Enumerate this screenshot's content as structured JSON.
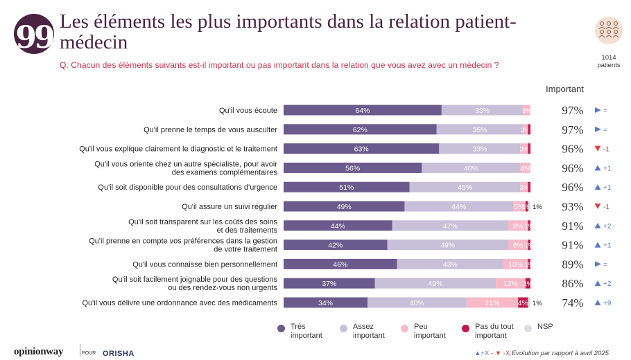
{
  "header": {
    "quote_glyph": "99",
    "title": "Les éléments les plus importants dans la relation patient-médecin",
    "question": "Q. Chacun des éléments suivants est-il important ou pas important dans la relation que vous avez avec un médecin ?",
    "patients_count": "1014",
    "patients_label": "patients",
    "important_header": "Important"
  },
  "chart_data": {
    "type": "bar",
    "orientation": "horizontal-stacked-100",
    "categories": [
      "Qu'il vous écoute",
      "Qu'il prenne le temps de vous ausculter",
      "Qu'il vous explique clairement le diagnostic et le traitement",
      "Qu'il vous oriente chez un autre spécialiste, pour avoir des examens complémentaires",
      "Qu'il soit disponible pour des consultations d'urgence",
      "Qu'il assure un suivi régulier",
      "Qu'il soit transparent sur les coûts des soins et des traitements",
      "Qu'il prenne en compte vos préférences dans la gestion de votre traitement",
      "Qu'il vous connaisse bien personnellement",
      "Qu'il soit facilement joignable pour des questions ou des rendez-vous non urgents",
      "Qu'il vous délivre une ordonnance avec des médicaments"
    ],
    "category_lines": [
      [
        "Qu'il vous écoute"
      ],
      [
        "Qu'il prenne le temps de vous ausculter"
      ],
      [
        "Qu'il vous explique clairement le diagnostic et le traitement"
      ],
      [
        "Qu'il vous oriente chez un autre spécialiste, pour avoir",
        "des examens complémentaires"
      ],
      [
        "Qu'il soit disponible pour des consultations d'urgence"
      ],
      [
        "Qu'il assure un suivi régulier"
      ],
      [
        "Qu'il soit transparent sur les coûts des soins",
        "et des traitements"
      ],
      [
        "Qu'il prenne en compte vos préférences dans la gestion",
        "de votre traitement"
      ],
      [
        "Qu'il vous connaisse bien personnellement"
      ],
      [
        "Qu'il soit facilement joignable pour des questions",
        "ou des rendez-vous non urgents"
      ],
      [
        "Qu'il vous délivre une ordonnance avec des médicaments"
      ]
    ],
    "series": [
      {
        "name": "Très important",
        "color": "#6b5a8c",
        "label_color": "#ffffff",
        "values": [
          64,
          62,
          63,
          56,
          51,
          49,
          44,
          42,
          46,
          37,
          34
        ],
        "labels": [
          "64%",
          "62%",
          "63%",
          "56%",
          "51%",
          "49%",
          "44%",
          "42%",
          "46%",
          "37%",
          "34%"
        ]
      },
      {
        "name": "Assez important",
        "color": "#c8bfd9",
        "label_color": "#ffffff",
        "values": [
          33,
          35,
          33,
          40,
          45,
          44,
          47,
          49,
          43,
          49,
          40
        ],
        "labels": [
          "33%",
          "35%",
          "33%",
          "40%",
          "45%",
          "44%",
          "47%",
          "49%",
          "43%",
          "49%",
          "40%"
        ]
      },
      {
        "name": "Peu important",
        "color": "#f7b8c8",
        "label_color": "#ffffff",
        "values": [
          3,
          2,
          3,
          4,
          3,
          5,
          8,
          8,
          10,
          12,
          21
        ],
        "labels": [
          "3%",
          "2%",
          "3%",
          "4%",
          "3%",
          "5%",
          "8%",
          "8%",
          "10%",
          "12%",
          "21%"
        ]
      },
      {
        "name": "Pas du tout important",
        "color": "#c2184f",
        "label_color": "#ffffff",
        "values": [
          0,
          1,
          1,
          0,
          1,
          1,
          1,
          1,
          1,
          2,
          4
        ],
        "labels": [
          "",
          "",
          "",
          "",
          "",
          "1%",
          "1%",
          "1%",
          "1%",
          "2%",
          "4%"
        ]
      },
      {
        "name": "NSP",
        "color": "#dcdce6",
        "label_color": "#333333",
        "values": [
          0,
          0,
          0,
          0,
          0,
          1,
          0,
          0,
          0,
          0,
          1
        ],
        "labels": [
          "",
          "",
          "",
          "",
          "",
          "",
          "",
          "",
          "",
          "",
          ""
        ]
      }
    ],
    "outside_labels": [
      "",
      "",
      "",
      "",
      "",
      "1%",
      "",
      "",
      "",
      "",
      "1%"
    ],
    "important_totals": [
      "97%",
      "97%",
      "96%",
      "96%",
      "96%",
      "93%",
      "91%",
      "91%",
      "89%",
      "86%",
      "74%"
    ],
    "evolution": [
      {
        "dir": "same",
        "text": "="
      },
      {
        "dir": "same",
        "text": "="
      },
      {
        "dir": "down",
        "text": "-1"
      },
      {
        "dir": "up",
        "text": "+1"
      },
      {
        "dir": "up",
        "text": "+1"
      },
      {
        "dir": "down",
        "text": "-1"
      },
      {
        "dir": "up",
        "text": "+2"
      },
      {
        "dir": "up",
        "text": "+1"
      },
      {
        "dir": "same",
        "text": "="
      },
      {
        "dir": "up",
        "text": "+2"
      },
      {
        "dir": "up",
        "text": "+9"
      }
    ],
    "evolution_colors": {
      "up": "#5b7bbf",
      "down": "#d64545",
      "same": "#5b7bbf"
    },
    "legend": [
      {
        "label": "Très important",
        "color": "#6b5a8c"
      },
      {
        "label": "Assez important",
        "color": "#c8bfd9"
      },
      {
        "label": "Peu important",
        "color": "#f7b8c8"
      },
      {
        "label": "Pas du tout important",
        "color": "#c2184f"
      },
      {
        "label": "NSP",
        "color": "#dcdce6"
      }
    ]
  },
  "footer": {
    "brand_opinionway": "opinionway",
    "brand_pour": "POUR",
    "brand_orisha": "ORISHA",
    "note_up": "▲+X",
    "note_sep": " - ",
    "note_down": "▼ -X",
    "note_text": " Evolution par rapport à avril 2025"
  }
}
